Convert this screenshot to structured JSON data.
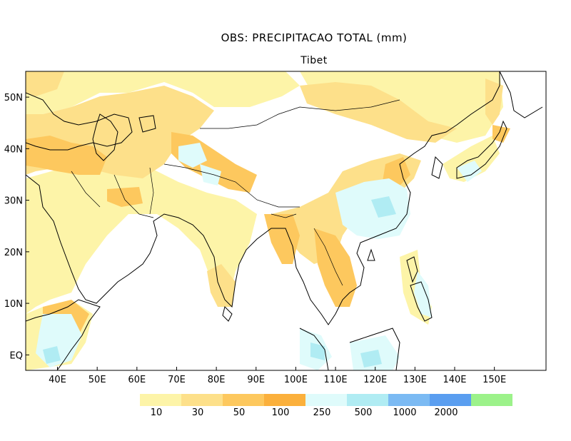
{
  "title": "OBS: PRECIPITACAO TOTAL (mm)",
  "subtitle": "Tibet",
  "map": {
    "lon_range": [
      32,
      163
    ],
    "lat_range": [
      -3,
      55
    ],
    "x_ticks": [
      {
        "lon": 40,
        "label": "40E"
      },
      {
        "lon": 50,
        "label": "50E"
      },
      {
        "lon": 60,
        "label": "60E"
      },
      {
        "lon": 70,
        "label": "70E"
      },
      {
        "lon": 80,
        "label": "80E"
      },
      {
        "lon": 90,
        "label": "90E"
      },
      {
        "lon": 100,
        "label": "100E"
      },
      {
        "lon": 110,
        "label": "110E"
      },
      {
        "lon": 120,
        "label": "120E"
      },
      {
        "lon": 130,
        "label": "130E"
      },
      {
        "lon": 140,
        "label": "140E"
      },
      {
        "lon": 150,
        "label": "150E"
      }
    ],
    "y_ticks": [
      {
        "lat": 0,
        "label": "EQ"
      },
      {
        "lat": 10,
        "label": "10N"
      },
      {
        "lat": 20,
        "label": "20N"
      },
      {
        "lat": 30,
        "label": "30N"
      },
      {
        "lat": 40,
        "label": "40N"
      },
      {
        "lat": 50,
        "label": "50N"
      }
    ]
  },
  "colorbar": {
    "colors": [
      "#fdf4a8",
      "#fde08a",
      "#fdc85e",
      "#fbb03c",
      "#dffbfb",
      "#b0ecf3",
      "#7bbaf3",
      "#5a9ef0",
      "#9cf28a"
    ],
    "labels": [
      "10",
      "30",
      "50",
      "100",
      "250",
      "500",
      "1000",
      "2000"
    ]
  }
}
